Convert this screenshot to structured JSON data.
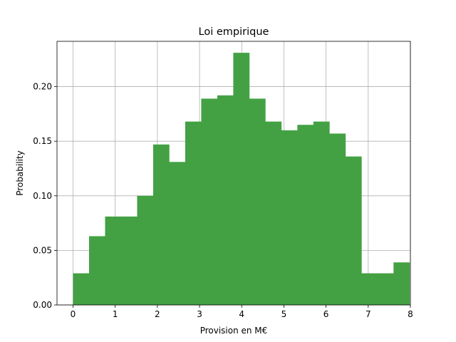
{
  "chart_data": {
    "type": "bar",
    "title": "Loi empirique",
    "xlabel": "Provision en M€",
    "ylabel": "Probability",
    "xlim": [
      -0.38,
      8.0
    ],
    "ylim": [
      0.0,
      0.2415
    ],
    "xticks": [
      {
        "value": 0,
        "label": "0"
      },
      {
        "value": 1,
        "label": "1"
      },
      {
        "value": 2,
        "label": "2"
      },
      {
        "value": 3,
        "label": "3"
      },
      {
        "value": 4,
        "label": "4"
      },
      {
        "value": 5,
        "label": "5"
      },
      {
        "value": 6,
        "label": "6"
      },
      {
        "value": 7,
        "label": "7"
      },
      {
        "value": 8,
        "label": "8"
      }
    ],
    "yticks": [
      {
        "value": 0.0,
        "label": "0.00"
      },
      {
        "value": 0.05,
        "label": "0.05"
      },
      {
        "value": 0.1,
        "label": "0.10"
      },
      {
        "value": 0.15,
        "label": "0.15"
      },
      {
        "value": 0.2,
        "label": "0.20"
      }
    ],
    "grid": true,
    "bar_color": "#43a143",
    "bin_edges": [
      0.0,
      0.38,
      0.76,
      1.14,
      1.52,
      1.9,
      2.28,
      2.66,
      3.04,
      3.42,
      3.8,
      4.18,
      4.56,
      4.94,
      5.32,
      5.7,
      6.08,
      6.46,
      6.84,
      7.22,
      7.6
    ],
    "values": [
      0.029,
      0.063,
      0.081,
      0.081,
      0.1,
      0.147,
      0.131,
      0.168,
      0.189,
      0.192,
      0.231,
      0.189,
      0.168,
      0.16,
      0.165,
      0.168,
      0.157,
      0.136,
      0.029,
      0.029,
      0.039
    ]
  }
}
